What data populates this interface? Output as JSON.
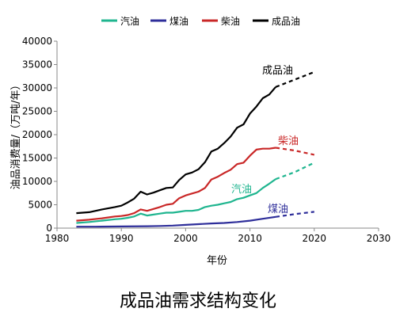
{
  "chart_data": {
    "type": "line",
    "caption": "成品油需求结构变化",
    "xlabel": "年份",
    "ylabel": "油品消费量/（万吨/年）",
    "xlim": [
      1980,
      2030
    ],
    "ylim": [
      0,
      40000
    ],
    "xticks": [
      1980,
      1990,
      2000,
      2010,
      2020,
      2030
    ],
    "yticks": [
      0,
      5000,
      10000,
      15000,
      20000,
      25000,
      30000,
      35000,
      40000
    ],
    "legend_position": "top",
    "series": [
      {
        "name": "汽油",
        "color": "#1fb58f",
        "label": "汽油",
        "actual": [
          [
            1983,
            1100
          ],
          [
            1985,
            1300
          ],
          [
            1987,
            1600
          ],
          [
            1989,
            1900
          ],
          [
            1990,
            2000
          ],
          [
            1991,
            2200
          ],
          [
            1992,
            2500
          ],
          [
            1993,
            3100
          ],
          [
            1994,
            2700
          ],
          [
            1995,
            2900
          ],
          [
            1996,
            3100
          ],
          [
            1997,
            3300
          ],
          [
            1998,
            3300
          ],
          [
            1999,
            3500
          ],
          [
            2000,
            3700
          ],
          [
            2001,
            3700
          ],
          [
            2002,
            3900
          ],
          [
            2003,
            4500
          ],
          [
            2004,
            4800
          ],
          [
            2005,
            5000
          ],
          [
            2006,
            5300
          ],
          [
            2007,
            5600
          ],
          [
            2008,
            6200
          ],
          [
            2009,
            6500
          ],
          [
            2010,
            7000
          ],
          [
            2011,
            7500
          ],
          [
            2012,
            8600
          ],
          [
            2013,
            9500
          ],
          [
            2014,
            10500
          ]
        ],
        "forecast": [
          [
            2014,
            10500
          ],
          [
            2017,
            12000
          ],
          [
            2020,
            14000
          ]
        ]
      },
      {
        "name": "煤油",
        "color": "#2e2e9a",
        "label": "煤油",
        "actual": [
          [
            1983,
            300
          ],
          [
            1986,
            300
          ],
          [
            1990,
            350
          ],
          [
            1994,
            400
          ],
          [
            1996,
            450
          ],
          [
            1998,
            550
          ],
          [
            2000,
            700
          ],
          [
            2002,
            850
          ],
          [
            2004,
            1000
          ],
          [
            2006,
            1100
          ],
          [
            2008,
            1300
          ],
          [
            2010,
            1600
          ],
          [
            2012,
            2000
          ],
          [
            2014,
            2400
          ]
        ],
        "forecast": [
          [
            2014,
            2400
          ],
          [
            2017,
            3000
          ],
          [
            2020,
            3500
          ]
        ]
      },
      {
        "name": "柴油",
        "color": "#c92727",
        "label": "柴油",
        "actual": [
          [
            1983,
            1600
          ],
          [
            1985,
            1800
          ],
          [
            1987,
            2100
          ],
          [
            1989,
            2500
          ],
          [
            1990,
            2600
          ],
          [
            1991,
            2800
          ],
          [
            1992,
            3200
          ],
          [
            1993,
            4000
          ],
          [
            1994,
            3700
          ],
          [
            1995,
            4100
          ],
          [
            1996,
            4500
          ],
          [
            1997,
            5000
          ],
          [
            1998,
            5200
          ],
          [
            1999,
            6400
          ],
          [
            2000,
            7000
          ],
          [
            2001,
            7400
          ],
          [
            2002,
            7800
          ],
          [
            2003,
            8600
          ],
          [
            2004,
            10400
          ],
          [
            2005,
            11000
          ],
          [
            2006,
            11800
          ],
          [
            2007,
            12500
          ],
          [
            2008,
            13700
          ],
          [
            2009,
            14000
          ],
          [
            2010,
            15500
          ],
          [
            2011,
            16800
          ],
          [
            2012,
            17000
          ],
          [
            2013,
            17000
          ],
          [
            2014,
            17200
          ]
        ],
        "forecast": [
          [
            2014,
            17200
          ],
          [
            2017,
            16600
          ],
          [
            2020,
            15700
          ]
        ]
      },
      {
        "name": "成品油",
        "color": "#000000",
        "label": "成品油",
        "actual": [
          [
            1983,
            3200
          ],
          [
            1985,
            3400
          ],
          [
            1987,
            4000
          ],
          [
            1989,
            4500
          ],
          [
            1990,
            4800
          ],
          [
            1991,
            5500
          ],
          [
            1992,
            6300
          ],
          [
            1993,
            7800
          ],
          [
            1994,
            7200
          ],
          [
            1995,
            7600
          ],
          [
            1996,
            8100
          ],
          [
            1997,
            8600
          ],
          [
            1998,
            8700
          ],
          [
            1999,
            10300
          ],
          [
            2000,
            11500
          ],
          [
            2001,
            11900
          ],
          [
            2002,
            12600
          ],
          [
            2003,
            14100
          ],
          [
            2004,
            16400
          ],
          [
            2005,
            17000
          ],
          [
            2006,
            18200
          ],
          [
            2007,
            19600
          ],
          [
            2008,
            21500
          ],
          [
            2009,
            22200
          ],
          [
            2010,
            24500
          ],
          [
            2011,
            26000
          ],
          [
            2012,
            27800
          ],
          [
            2013,
            28600
          ],
          [
            2014,
            30200
          ]
        ],
        "forecast": [
          [
            2014,
            30200
          ],
          [
            2017,
            31800
          ],
          [
            2020,
            33400
          ]
        ]
      }
    ]
  }
}
